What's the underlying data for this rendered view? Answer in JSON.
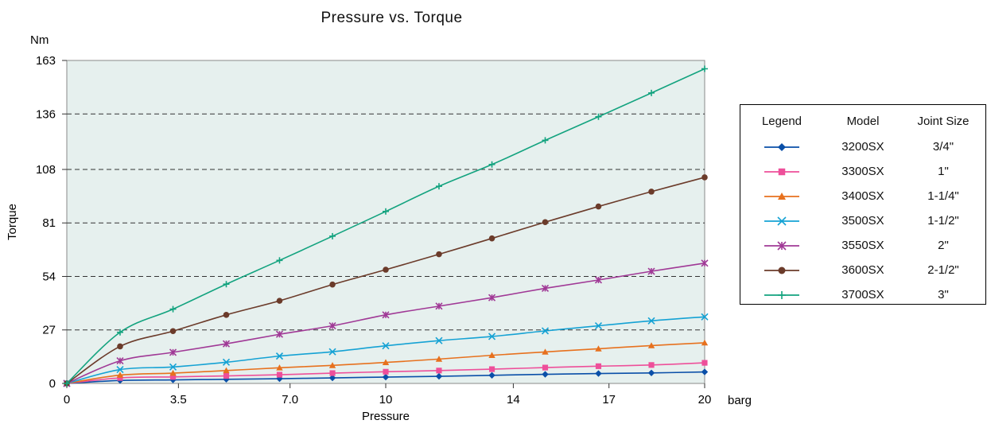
{
  "chart_data": {
    "type": "line",
    "title": "Pressure vs. Torque",
    "xlabel": "Pressure",
    "ylabel": "Torque",
    "x_unit": "barg",
    "y_unit": "Nm",
    "xlim": [
      0,
      20
    ],
    "ylim": [
      0,
      163
    ],
    "x_ticks": [
      "0",
      "3.5",
      "7.0",
      "10",
      "14",
      "17",
      "20"
    ],
    "y_ticks": [
      "0",
      "27",
      "54",
      "81",
      "108",
      "136",
      "163"
    ],
    "grid": "horizontal dashed",
    "legend_position": "right",
    "legend_headers": [
      "Legend",
      "Model",
      "Joint Size"
    ],
    "x": [
      0,
      1.67,
      3.33,
      5.0,
      6.67,
      8.33,
      10.0,
      11.67,
      13.33,
      15.0,
      16.67,
      18.33,
      20.0
    ],
    "series": [
      {
        "name": "3200SX",
        "joint_size": "3/4\"",
        "color": "#0a4fa8",
        "marker": "diamond",
        "values": [
          0,
          1.5,
          1.8,
          2.1,
          2.4,
          2.8,
          3.2,
          3.6,
          4.1,
          4.6,
          5.0,
          5.3,
          5.8
        ]
      },
      {
        "name": "3300SX",
        "joint_size": "1\"",
        "color": "#ee4f9a",
        "marker": "square",
        "values": [
          0,
          2.8,
          3.3,
          3.8,
          4.4,
          5.2,
          5.9,
          6.5,
          7.2,
          8.0,
          8.7,
          9.3,
          10.4
        ]
      },
      {
        "name": "3400SX",
        "joint_size": "1-1/4\"",
        "color": "#e7711e",
        "marker": "triangle",
        "values": [
          0,
          4.2,
          5.2,
          6.5,
          7.9,
          9.1,
          10.6,
          12.3,
          14.2,
          15.9,
          17.5,
          19.1,
          20.5
        ]
      },
      {
        "name": "3500SX",
        "joint_size": "1-1/2\"",
        "color": "#15a2d4",
        "marker": "x",
        "values": [
          0,
          7.0,
          8.3,
          10.7,
          13.8,
          16.0,
          19.0,
          21.6,
          23.7,
          26.5,
          29.1,
          31.6,
          33.6
        ]
      },
      {
        "name": "3550SX",
        "joint_size": "2\"",
        "color": "#a03996",
        "marker": "asterisk",
        "values": [
          0,
          11.4,
          15.7,
          20.0,
          24.8,
          29.1,
          34.6,
          39.0,
          43.3,
          48.0,
          52.2,
          56.6,
          60.7
        ]
      },
      {
        "name": "3600SX",
        "joint_size": "2-1/2\"",
        "color": "#6b3b2a",
        "marker": "circle",
        "values": [
          0,
          18.7,
          26.4,
          34.6,
          41.7,
          49.9,
          57.4,
          65.2,
          73.2,
          81.4,
          89.3,
          96.8,
          104.0
        ]
      },
      {
        "name": "3700SX",
        "joint_size": "3\"",
        "color": "#13a37f",
        "marker": "plus",
        "values": [
          0,
          25.8,
          37.5,
          50.1,
          62.1,
          74.3,
          86.8,
          99.5,
          110.5,
          122.7,
          134.6,
          146.6,
          158.8
        ]
      }
    ]
  }
}
